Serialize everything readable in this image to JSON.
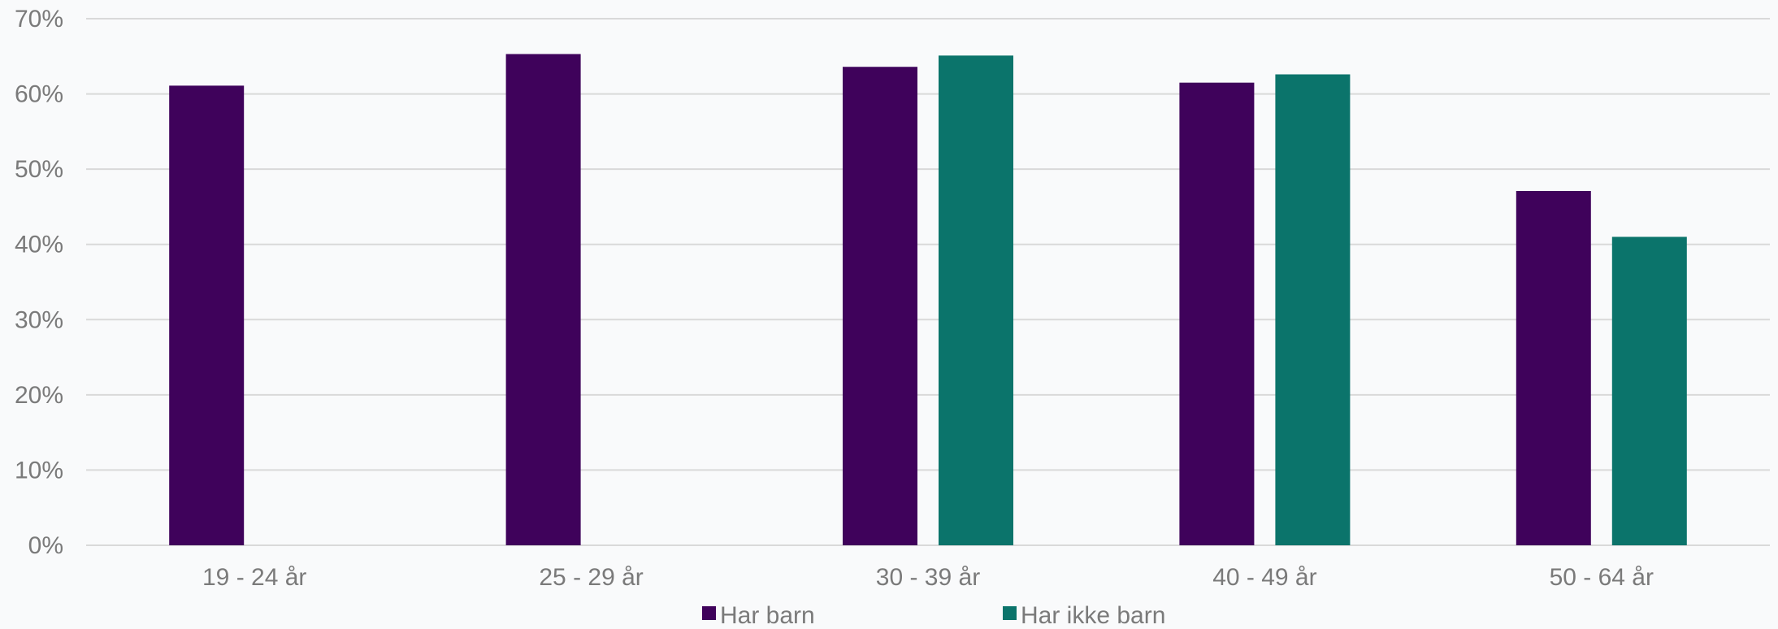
{
  "chart_data": {
    "type": "bar",
    "categories": [
      "19 - 24 år",
      "25 - 29 år",
      "30 - 39 år",
      "40 - 49 år",
      "50 - 64 år"
    ],
    "series": [
      {
        "name": "Har barn",
        "color": "#3f025b",
        "values": [
          0.611,
          0.653,
          0.636,
          0.615,
          0.471
        ]
      },
      {
        "name": "Har ikke barn",
        "color": "#0b746b",
        "values": [
          0.0,
          0.0,
          0.651,
          0.626,
          0.41
        ]
      }
    ],
    "y_ticks": [
      "0%",
      "10%",
      "20%",
      "30%",
      "40%",
      "50%",
      "60%",
      "70%"
    ],
    "ylim": [
      0,
      0.7
    ],
    "grid": true,
    "legend_position": "bottom"
  }
}
